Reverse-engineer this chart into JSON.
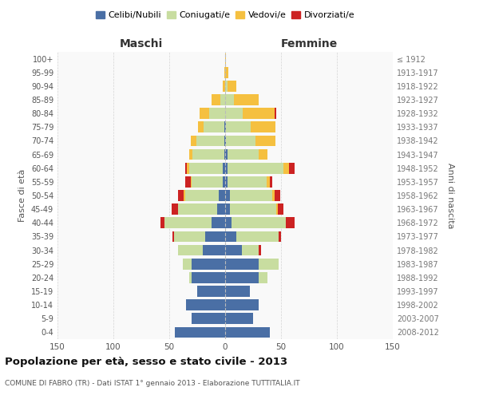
{
  "age_groups": [
    "0-4",
    "5-9",
    "10-14",
    "15-19",
    "20-24",
    "25-29",
    "30-34",
    "35-39",
    "40-44",
    "45-49",
    "50-54",
    "55-59",
    "60-64",
    "65-69",
    "70-74",
    "75-79",
    "80-84",
    "85-89",
    "90-94",
    "95-99",
    "100+"
  ],
  "birth_years": [
    "2008-2012",
    "2003-2007",
    "1998-2002",
    "1993-1997",
    "1988-1992",
    "1983-1987",
    "1978-1982",
    "1973-1977",
    "1968-1972",
    "1963-1967",
    "1958-1962",
    "1953-1957",
    "1948-1952",
    "1943-1947",
    "1938-1942",
    "1933-1937",
    "1928-1932",
    "1923-1927",
    "1918-1922",
    "1913-1917",
    "≤ 1912"
  ],
  "colors": {
    "celibi": "#4a6fa5",
    "coniugati": "#c8dda0",
    "vedovi": "#f5c040",
    "divorziati": "#cc2222"
  },
  "male": {
    "celibi": [
      45,
      30,
      35,
      25,
      30,
      30,
      20,
      18,
      12,
      7,
      6,
      2,
      2,
      1,
      1,
      1,
      0,
      0,
      0,
      0,
      0
    ],
    "coniugati": [
      0,
      0,
      0,
      0,
      2,
      8,
      22,
      28,
      42,
      35,
      30,
      28,
      30,
      28,
      25,
      18,
      14,
      4,
      0,
      0,
      0
    ],
    "vedovi": [
      0,
      0,
      0,
      0,
      0,
      0,
      0,
      0,
      0,
      0,
      1,
      1,
      2,
      3,
      5,
      5,
      9,
      8,
      2,
      1,
      0
    ],
    "divorziati": [
      0,
      0,
      0,
      0,
      0,
      0,
      0,
      1,
      4,
      6,
      5,
      5,
      2,
      0,
      0,
      0,
      0,
      0,
      0,
      0,
      0
    ]
  },
  "female": {
    "nubili": [
      40,
      25,
      30,
      22,
      30,
      30,
      15,
      10,
      6,
      4,
      4,
      2,
      2,
      2,
      1,
      1,
      0,
      0,
      0,
      0,
      0
    ],
    "coniugate": [
      0,
      0,
      0,
      0,
      8,
      18,
      15,
      38,
      48,
      42,
      38,
      35,
      50,
      28,
      26,
      22,
      16,
      8,
      2,
      0,
      0
    ],
    "vedove": [
      0,
      0,
      0,
      0,
      0,
      0,
      0,
      0,
      0,
      1,
      2,
      3,
      5,
      8,
      18,
      22,
      28,
      22,
      8,
      3,
      1
    ],
    "divorziate": [
      0,
      0,
      0,
      0,
      0,
      0,
      2,
      2,
      8,
      5,
      5,
      2,
      5,
      0,
      0,
      0,
      2,
      0,
      0,
      0,
      0
    ]
  },
  "xlim": 150,
  "title": "Popolazione per età, sesso e stato civile - 2013",
  "subtitle": "COMUNE DI FABRO (TR) - Dati ISTAT 1° gennaio 2013 - Elaborazione TUTTITALIA.IT",
  "ylabel_left": "Fasce di età",
  "ylabel_right": "Anni di nascita",
  "label_maschi": "Maschi",
  "label_femmine": "Femmine"
}
